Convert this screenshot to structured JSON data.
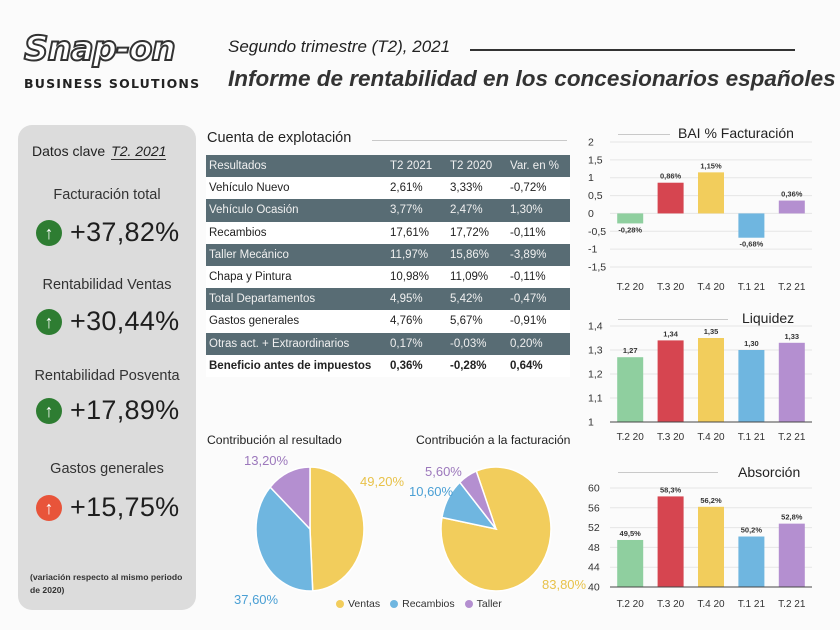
{
  "header": {
    "logo_word": "Snap-on",
    "logo_sub": "BUSINESS SOLUTIONS",
    "subtitle": "Segundo trimestre (T2), 2021",
    "title": "Informe de rentabilidad en los concesionarios españoles"
  },
  "key_data": {
    "heading": "Datos clave",
    "period": "T2. 2021",
    "items": [
      {
        "label": "Facturación total",
        "arrow": "↑",
        "value": "+37,82%",
        "color": "#2e7d32"
      },
      {
        "label": "Rentabilidad Ventas",
        "arrow": "↑",
        "value": "+30,44%",
        "color": "#2e7d32"
      },
      {
        "label": "Rentabilidad Posventa",
        "arrow": "↑",
        "value": "+17,89%",
        "color": "#2e7d32"
      },
      {
        "label": "Gastos generales",
        "arrow": "↑",
        "value": "+15,75%",
        "color": "#e8543a"
      }
    ],
    "note": "(variación respecto al mismo periodo de 2020)"
  },
  "table": {
    "title": "Cuenta de explotación",
    "headers": [
      "Resultados",
      "T2 2021",
      "T2 2020",
      "Var. en %"
    ],
    "rows": [
      [
        "Vehículo Nuevo",
        "2,61%",
        "3,33%",
        "-0,72%"
      ],
      [
        "Vehículo Ocasión",
        "3,77%",
        "2,47%",
        "1,30%"
      ],
      [
        "Recambios",
        "17,61%",
        "17,72%",
        "-0,11%"
      ],
      [
        "Taller Mecánico",
        "11,97%",
        "15,86%",
        "-3,89%"
      ],
      [
        "Chapa y Pintura",
        "10,98%",
        "11,09%",
        "-0,11%"
      ],
      [
        "Total Departamentos",
        "4,95%",
        "5,42%",
        "-0,47%"
      ],
      [
        "Gastos generales",
        "4,76%",
        "5,67%",
        "-0,91%"
      ],
      [
        "Otras act. + Extraordinarios",
        "0,17%",
        "-0,03%",
        "0,20%"
      ],
      [
        "Beneficio antes de impuestos",
        "0,36%",
        "-0,28%",
        "0,64%"
      ]
    ]
  },
  "colors": {
    "ventas": "#f2cd5c",
    "recambios": "#6fb6e0",
    "taller": "#b48fd0",
    "green": "#8fcf9f",
    "red": "#d64550",
    "yellow": "#f2cd5c",
    "blue": "#6fb6e0",
    "purple": "#b48fd0"
  },
  "chart_data": [
    {
      "type": "pie",
      "title": "Contribución al resultado",
      "categories": [
        "Ventas",
        "Recambios",
        "Taller"
      ],
      "values": [
        49.2,
        37.6,
        13.2
      ],
      "labels": [
        "49,20%",
        "37,60%",
        "13,20%"
      ]
    },
    {
      "type": "pie",
      "title": "Contribución a la facturación",
      "categories": [
        "Ventas",
        "Recambios",
        "Taller"
      ],
      "values": [
        83.8,
        10.6,
        5.6
      ],
      "labels": [
        "83,80%",
        "10,60%",
        "5,60%"
      ]
    },
    {
      "type": "bar",
      "title": "BAI % Facturación",
      "categories": [
        "T.2 20",
        "T.3 20",
        "T.4 20",
        "T.1 21",
        "T.2 21"
      ],
      "values": [
        -0.28,
        0.86,
        1.15,
        -0.68,
        0.36
      ],
      "labels": [
        "-0,28%",
        "0,86%",
        "1,15%",
        "-0,68%",
        "0,36%"
      ],
      "ylim": [
        -1.5,
        2
      ],
      "yticks": [
        -1.5,
        -1,
        -0.5,
        0,
        0.5,
        1,
        1.5,
        2
      ],
      "ytick_labels": [
        "-1,5",
        "-1",
        "-0,5",
        "0",
        "0,5",
        "1",
        "1,5",
        "2"
      ]
    },
    {
      "type": "bar",
      "title": "Liquidez",
      "categories": [
        "T.2 20",
        "T.3 20",
        "T.4 20",
        "T.1 21",
        "T.2 21"
      ],
      "values": [
        1.27,
        1.34,
        1.35,
        1.3,
        1.33
      ],
      "labels": [
        "1,27",
        "1,34",
        "1,35",
        "1,30",
        "1,33"
      ],
      "ylim": [
        1,
        1.4
      ],
      "yticks": [
        1,
        1.1,
        1.2,
        1.3,
        1.4
      ],
      "ytick_labels": [
        "1",
        "1,1",
        "1,2",
        "1,3",
        "1,4"
      ]
    },
    {
      "type": "bar",
      "title": "Absorción",
      "categories": [
        "T.2 20",
        "T.3 20",
        "T.4 20",
        "T.1 21",
        "T.2 21"
      ],
      "values": [
        49.5,
        58.3,
        56.2,
        50.2,
        52.8
      ],
      "labels": [
        "49,5%",
        "58,3%",
        "56,2%",
        "50,2%",
        "52,8%"
      ],
      "ylim": [
        40,
        60
      ],
      "yticks": [
        40,
        44,
        48,
        52,
        56,
        60
      ],
      "ytick_labels": [
        "40",
        "44",
        "48",
        "52",
        "56",
        "60"
      ]
    }
  ]
}
